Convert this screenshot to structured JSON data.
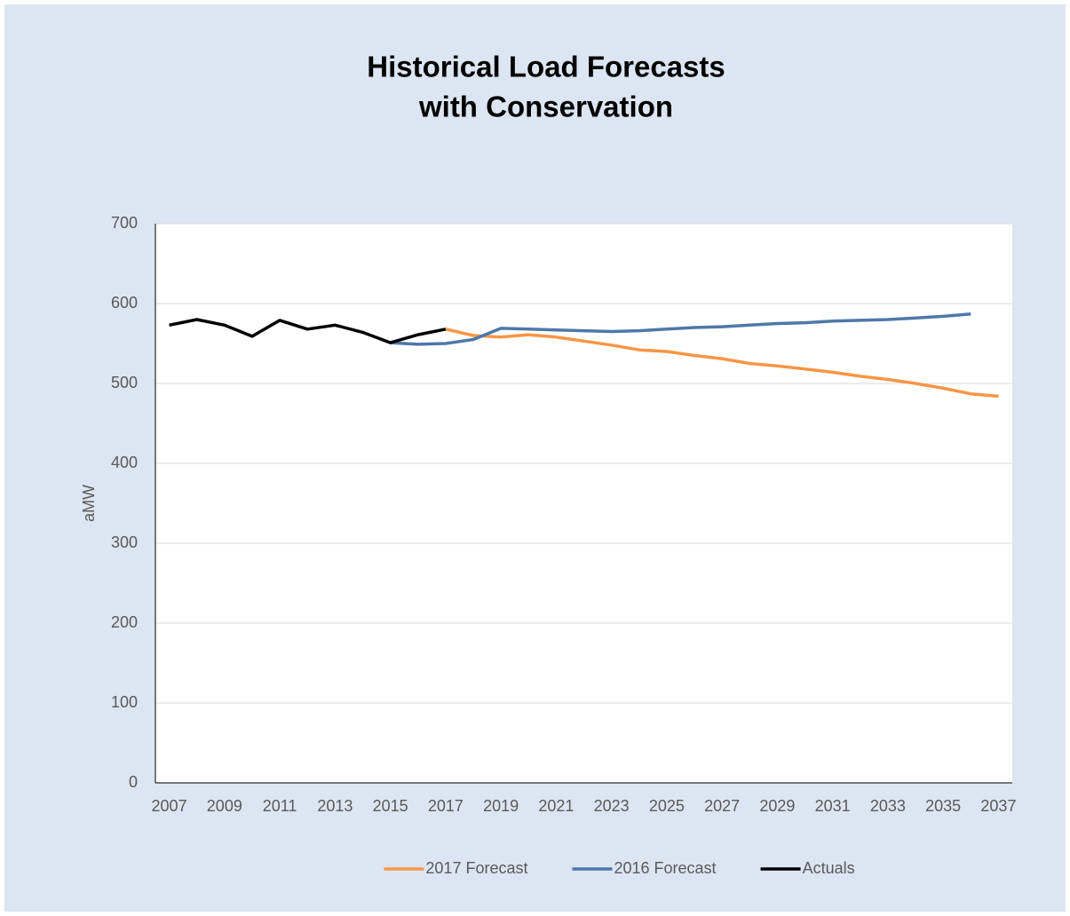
{
  "chart_data": {
    "type": "line",
    "title": [
      "Historical Load Forecasts",
      "with Conservation"
    ],
    "y_label": "aMW",
    "x": [
      2007,
      2008,
      2009,
      2010,
      2011,
      2012,
      2013,
      2014,
      2015,
      2016,
      2017,
      2018,
      2019,
      2020,
      2021,
      2022,
      2023,
      2024,
      2025,
      2026,
      2027,
      2028,
      2029,
      2030,
      2031,
      2032,
      2033,
      2034,
      2035,
      2036,
      2037
    ],
    "xlim": [
      2006.5,
      2037.5
    ],
    "xticks": [
      2007,
      2009,
      2011,
      2013,
      2015,
      2017,
      2019,
      2021,
      2023,
      2025,
      2027,
      2029,
      2031,
      2033,
      2035,
      2037
    ],
    "ylim": [
      0,
      700
    ],
    "yticks": [
      0,
      100,
      200,
      300,
      400,
      500,
      600,
      700
    ],
    "grid": true,
    "legend": "bottom",
    "series": [
      {
        "name": "2017 Forecast",
        "color": "#f79646",
        "values": [
          null,
          null,
          null,
          null,
          null,
          null,
          null,
          null,
          null,
          null,
          568,
          560,
          558,
          561,
          558,
          553,
          548,
          542,
          540,
          535,
          531,
          525,
          522,
          518,
          514,
          509,
          505,
          500,
          494,
          487,
          484
        ]
      },
      {
        "name": "2016 Forecast",
        "color": "#4f77aa",
        "values": [
          null,
          null,
          null,
          null,
          null,
          null,
          null,
          null,
          551,
          549,
          550,
          555,
          569,
          568,
          567,
          566,
          565,
          566,
          568,
          570,
          571,
          573,
          575,
          576,
          578,
          579,
          580,
          582,
          584,
          587,
          null
        ]
      },
      {
        "name": "Actuals",
        "color": "#000000",
        "values": [
          573,
          580,
          573,
          559,
          579,
          568,
          573,
          564,
          551,
          561,
          568,
          null,
          null,
          null,
          null,
          null,
          null,
          null,
          null,
          null,
          null,
          null,
          null,
          null,
          null,
          null,
          null,
          null,
          null,
          null,
          null
        ]
      }
    ]
  }
}
